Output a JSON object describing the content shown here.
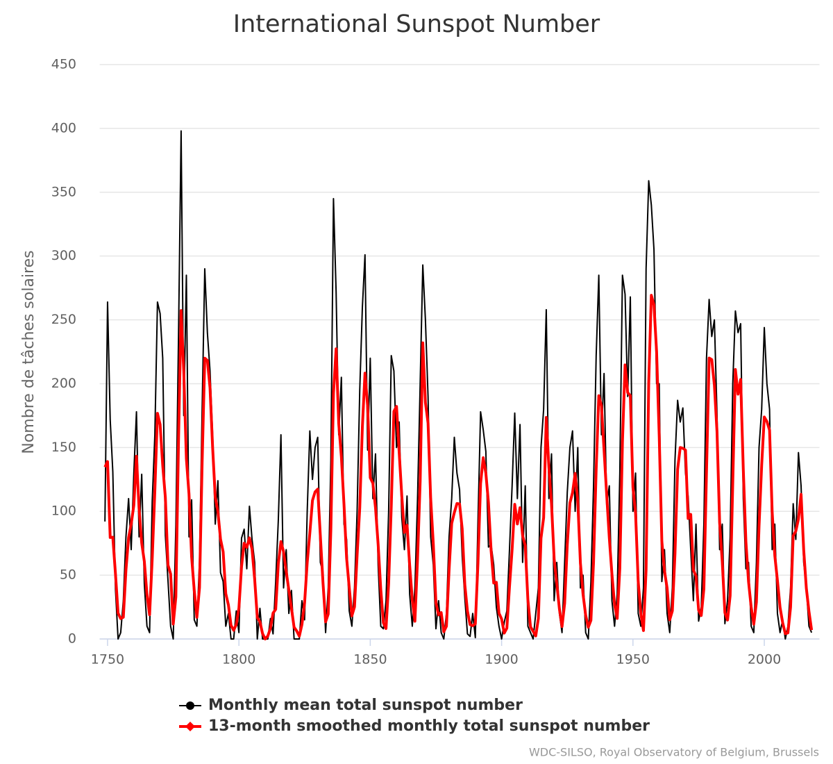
{
  "chart_data": {
    "type": "line",
    "title": "International Sunspot Number",
    "y_label": "Nombre de tâches solaires",
    "credit": "WDC-SILSO, Royal Observatory of Belgium, Brussels",
    "xlim": [
      1747,
      2021
    ],
    "xticks": [
      1750,
      1800,
      1850,
      1900,
      1950,
      2000
    ],
    "ylim": [
      0,
      450
    ],
    "yticks": [
      0,
      50,
      100,
      150,
      200,
      250,
      300,
      350,
      400,
      450
    ],
    "grid": true,
    "legend": "bottom",
    "x": [
      1749,
      1750,
      1751,
      1752,
      1753,
      1754,
      1755,
      1756,
      1757,
      1758,
      1759,
      1760,
      1761,
      1762,
      1763,
      1764,
      1765,
      1766,
      1767,
      1768,
      1769,
      1770,
      1771,
      1772,
      1773,
      1774,
      1775,
      1776,
      1777,
      1778,
      1779,
      1780,
      1781,
      1782,
      1783,
      1784,
      1785,
      1786,
      1787,
      1788,
      1789,
      1790,
      1791,
      1792,
      1793,
      1794,
      1795,
      1796,
      1797,
      1798,
      1799,
      1800,
      1801,
      1802,
      1803,
      1804,
      1805,
      1806,
      1807,
      1808,
      1809,
      1810,
      1811,
      1812,
      1813,
      1814,
      1815,
      1816,
      1817,
      1818,
      1819,
      1820,
      1821,
      1822,
      1823,
      1824,
      1825,
      1826,
      1827,
      1828,
      1829,
      1830,
      1831,
      1832,
      1833,
      1834,
      1835,
      1836,
      1837,
      1838,
      1839,
      1840,
      1841,
      1842,
      1843,
      1844,
      1845,
      1846,
      1847,
      1848,
      1849,
      1850,
      1851,
      1852,
      1853,
      1854,
      1855,
      1856,
      1857,
      1858,
      1859,
      1860,
      1861,
      1862,
      1863,
      1864,
      1865,
      1866,
      1867,
      1868,
      1869,
      1870,
      1871,
      1872,
      1873,
      1874,
      1875,
      1876,
      1877,
      1878,
      1879,
      1880,
      1881,
      1882,
      1883,
      1884,
      1885,
      1886,
      1887,
      1888,
      1889,
      1890,
      1891,
      1892,
      1893,
      1894,
      1895,
      1896,
      1897,
      1898,
      1899,
      1900,
      1901,
      1902,
      1903,
      1904,
      1905,
      1906,
      1907,
      1908,
      1909,
      1910,
      1911,
      1912,
      1913,
      1914,
      1915,
      1916,
      1917,
      1918,
      1919,
      1920,
      1921,
      1922,
      1923,
      1924,
      1925,
      1926,
      1927,
      1928,
      1929,
      1930,
      1931,
      1932,
      1933,
      1934,
      1935,
      1936,
      1937,
      1938,
      1939,
      1940,
      1941,
      1942,
      1943,
      1944,
      1945,
      1946,
      1947,
      1948,
      1949,
      1950,
      1951,
      1952,
      1953,
      1954,
      1955,
      1956,
      1957,
      1958,
      1959,
      1960,
      1961,
      1962,
      1963,
      1964,
      1965,
      1966,
      1967,
      1968,
      1969,
      1970,
      1971,
      1972,
      1973,
      1974,
      1975,
      1976,
      1977,
      1978,
      1979,
      1980,
      1981,
      1982,
      1983,
      1984,
      1985,
      1986,
      1987,
      1988,
      1989,
      1990,
      1991,
      1992,
      1993,
      1994,
      1995,
      1996,
      1997,
      1998,
      1999,
      2000,
      2001,
      2002,
      2003,
      2004,
      2005,
      2006,
      2007,
      2008,
      2009,
      2010,
      2011,
      2012,
      2013,
      2014,
      2015,
      2016,
      2017,
      2018
    ],
    "series": [
      {
        "name": "Monthly mean total sunspot number",
        "color": "#000000",
        "width": 2,
        "marker": "circle",
        "values": [
          92,
          264,
          172,
          131,
          39,
          0,
          5,
          30,
          80,
          110,
          70,
          130,
          178,
          80,
          129,
          43,
          10,
          5,
          108,
          160,
          264,
          255,
          220,
          81,
          46,
          10,
          0,
          89,
          236,
          398,
          175,
          285,
          80,
          109,
          15,
          10,
          61,
          180,
          290,
          240,
          210,
          160,
          90,
          124,
          52,
          45,
          10,
          20,
          0,
          0,
          22,
          5,
          79,
          86,
          55,
          104,
          78,
          60,
          0,
          24,
          0,
          0,
          0,
          16,
          4,
          45,
          93,
          160,
          40,
          70,
          20,
          38,
          0,
          0,
          0,
          30,
          15,
          100,
          163,
          125,
          150,
          158,
          60,
          52,
          5,
          40,
          140,
          345,
          272,
          160,
          205,
          90,
          78,
          22,
          10,
          40,
          100,
          195,
          260,
          301,
          148,
          220,
          110,
          145,
          58,
          10,
          8,
          30,
          100,
          222,
          210,
          150,
          170,
          95,
          70,
          112,
          35,
          10,
          40,
          110,
          200,
          293,
          250,
          190,
          80,
          58,
          8,
          30,
          5,
          0,
          20,
          80,
          110,
          158,
          130,
          117,
          65,
          32,
          4,
          2,
          20,
          1,
          92,
          178,
          164,
          147,
          72,
          74,
          58,
          25,
          10,
          0,
          13,
          22,
          70,
          120,
          177,
          110,
          168,
          60,
          120,
          10,
          5,
          0,
          20,
          40,
          150,
          180,
          258,
          110,
          145,
          30,
          60,
          20,
          5,
          60,
          115,
          150,
          163,
          100,
          150,
          40,
          50,
          5,
          0,
          45,
          120,
          222,
          285,
          160,
          208,
          105,
          120,
          30,
          10,
          35,
          130,
          285,
          270,
          190,
          268,
          100,
          130,
          20,
          10,
          40,
          290,
          359,
          340,
          305,
          200,
          200,
          45,
          70,
          20,
          5,
          40,
          140,
          187,
          170,
          181,
          130,
          112,
          70,
          30,
          90,
          14,
          25,
          90,
          220,
          266,
          237,
          250,
          176,
          70,
          90,
          12,
          30,
          80,
          200,
          257,
          240,
          247,
          110,
          55,
          60,
          10,
          5,
          60,
          150,
          180,
          244,
          200,
          180,
          70,
          90,
          20,
          5,
          15,
          0,
          10,
          40,
          106,
          78,
          146,
          120,
          60,
          40,
          10,
          5
        ]
      },
      {
        "name": "13-month smoothed monthly total sunspot number",
        "color": "#ff0000",
        "width": 4,
        "marker": "diamond",
        "values": [
          134.7,
          139.0,
          79.5,
          79.7,
          51.2,
          20.3,
          16.0,
          17.0,
          54.0,
          79.3,
          90.0,
          104.8,
          143.2,
          102.0,
          75.2,
          60.7,
          34.8,
          19.0,
          63.0,
          116.3,
          176.8,
          168.0,
          136.0,
          110.8,
          58.0,
          51.0,
          11.7,
          33.0,
          154.2,
          257.3,
          209.8,
          141.3,
          113.5,
          64.2,
          38.0,
          17.0,
          40.2,
          138.2,
          220.0,
          218.2,
          196.8,
          149.8,
          111.0,
          100.0,
          78.2,
          68.3,
          35.5,
          26.7,
          10.7,
          6.8,
          11.3,
          24.2,
          56.7,
          75.0,
          71.8,
          79.2,
          70.3,
          46.8,
          16.8,
          13.5,
          4.2,
          0.0,
          2.3,
          8.3,
          20.3,
          23.2,
          59.0,
          76.3,
          68.3,
          52.9,
          38.5,
          24.2,
          9.2,
          6.3,
          2.2,
          11.4,
          28.2,
          59.9,
          83.0,
          108.5,
          115.2,
          117.4,
          80.8,
          44.3,
          13.4,
          19.5,
          85.8,
          192.7,
          227.3,
          168.7,
          143.0,
          105.5,
          63.3,
          40.3,
          18.1,
          25.1,
          65.8,
          102.7,
          166.3,
          208.3,
          182.5,
          126.3,
          122.0,
          102.7,
          74.1,
          39.0,
          12.7,
          8.2,
          43.4,
          104.4,
          178.3,
          182.2,
          146.6,
          112.1,
          83.5,
          89.2,
          57.8,
          30.7,
          13.9,
          62.8,
          123.6,
          232.0,
          185.3,
          169.2,
          110.1,
          74.5,
          28.3,
          18.9,
          20.7,
          5.7,
          10.0,
          53.7,
          90.5,
          99.0,
          106.1,
          105.8,
          86.3,
          42.4,
          21.8,
          11.2,
          10.4,
          11.8,
          59.5,
          121.7,
          142.0,
          130.0,
          106.6,
          69.4,
          43.8,
          44.4,
          20.2,
          15.7,
          4.6,
          8.5,
          40.8,
          70.1,
          105.5,
          90.1,
          102.8,
          80.9,
          73.2,
          30.9,
          9.5,
          6.0,
          2.4,
          16.1,
          79.0,
          95.0,
          173.6,
          134.6,
          105.7,
          62.7,
          43.5,
          23.7,
          9.7,
          27.9,
          74.0,
          106.5,
          114.7,
          129.7,
          108.2,
          59.4,
          35.1,
          18.6,
          9.2,
          14.6,
          60.2,
          132.8,
          190.6,
          182.6,
          148.0,
          113.0,
          79.2,
          50.8,
          27.1,
          16.1,
          55.3,
          154.3,
          214.7,
          193.0,
          190.7,
          118.9,
          98.3,
          45.0,
          20.1,
          6.6,
          54.2,
          200.7,
          269.3,
          261.7,
          225.1,
          159.0,
          76.4,
          53.4,
          39.9,
          15.0,
          22.0,
          66.8,
          132.9,
          150.0,
          149.4,
          148.0,
          94.4,
          97.6,
          54.1,
          49.2,
          22.5,
          18.4,
          39.3,
          131.0,
          220.1,
          218.9,
          198.9,
          162.4,
          91.0,
          60.5,
          20.6,
          14.8,
          33.9,
          123.0,
          211.1,
          191.8,
          203.3,
          133.0,
          76.1,
          44.9,
          25.1,
          11.6,
          28.9,
          88.3,
          136.3,
          173.9,
          170.4,
          163.6,
          99.3,
          65.3,
          45.8,
          24.7,
          12.6,
          4.2,
          4.8,
          24.9,
          80.8,
          84.5,
          94.0,
          113.3,
          69.8,
          39.8,
          21.7,
          7.0
        ]
      }
    ]
  }
}
